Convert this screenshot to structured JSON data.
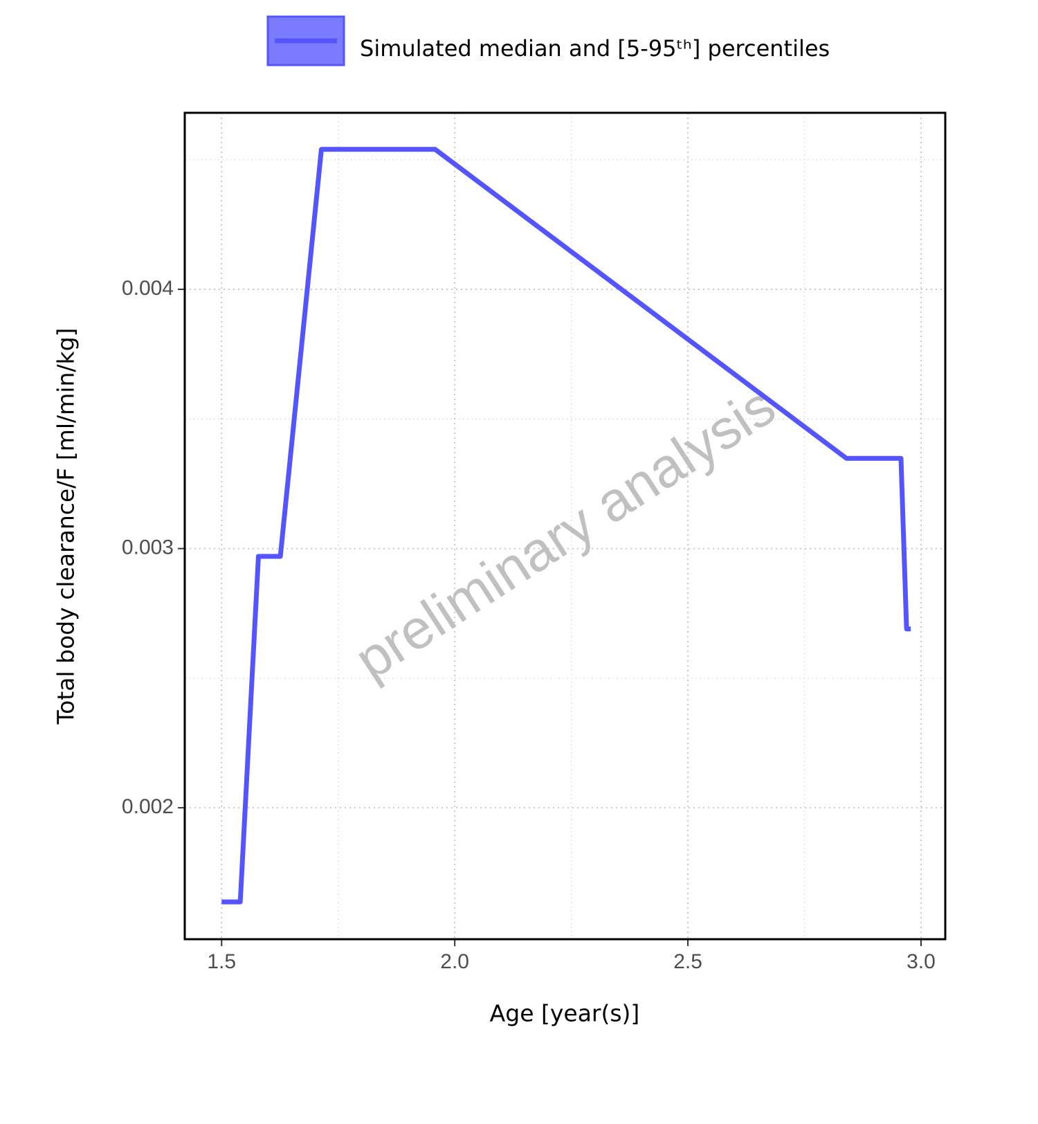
{
  "chart_data": {
    "type": "line",
    "xlabel": "Age [year(s)]",
    "ylabel": "Total body clearance/F [ml/min/kg]",
    "annotation": "preliminary analysis",
    "x": [
      1.5,
      1.54,
      1.579,
      1.626,
      1.714,
      1.958,
      2.84,
      2.957,
      2.969,
      2.978
    ],
    "series": [
      {
        "name": "Simulated median and [5-95ᵗʰ] percentiles",
        "color": "#5555ff",
        "values": [
          0.001637,
          0.001637,
          0.00297,
          0.00297,
          0.00454,
          0.00454,
          0.003348,
          0.003348,
          0.00269,
          0.00269
        ]
      }
    ],
    "xlim": [
      1.421,
      3.052
    ],
    "ylim": [
      0.001493,
      0.004681
    ],
    "xticks": [
      1.5,
      {
        "value": 2,
        "label": "2.0"
      },
      2.5,
      {
        "value": 3,
        "label": "3.0"
      }
    ],
    "yticks": [
      0.002,
      0.003,
      0.004
    ],
    "x_minor_grid": [
      1.75,
      2.25,
      2.75
    ],
    "y_minor_grid": [
      0.0025,
      0.0035,
      0.0045
    ],
    "grid": true,
    "legend": "top"
  }
}
